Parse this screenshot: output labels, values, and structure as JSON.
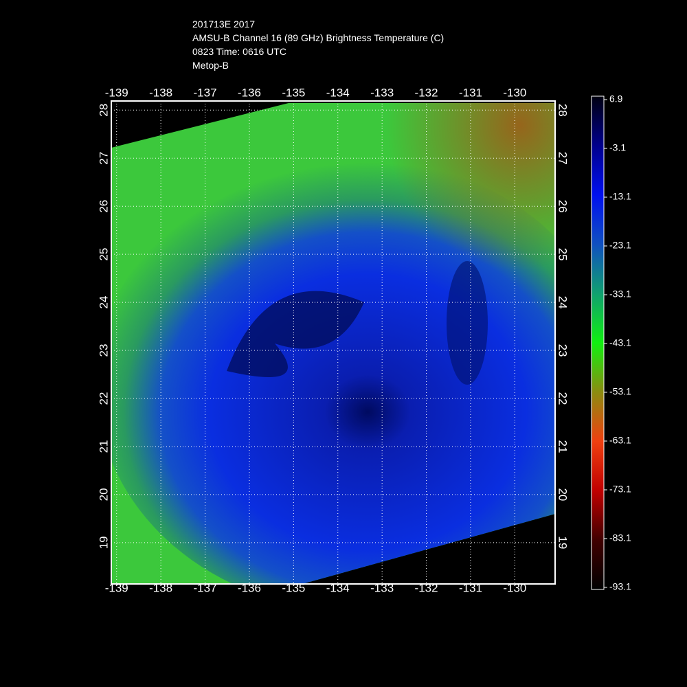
{
  "header": {
    "lines": [
      "201713E 2017",
      "AMSU-B Channel 16 (89 GHz) Brightness Temperature (C)",
      "0823 Time: 0616 UTC",
      "Metop-B"
    ]
  },
  "map": {
    "xlim": [
      -139.12,
      -129.09
    ],
    "ylim": [
      18.14,
      28.19
    ],
    "xticks": [
      -139,
      -138,
      -137,
      -136,
      -135,
      -134,
      -133,
      -132,
      -131,
      -130
    ],
    "yticks": [
      19,
      20,
      21,
      22,
      23,
      24,
      25,
      26,
      27,
      28
    ],
    "grid": true
  },
  "colorbar": {
    "lim": [
      -93.1,
      6.9
    ],
    "ticks": [
      6.9,
      -3.1,
      -13.1,
      -23.1,
      -33.1,
      -43.1,
      -53.1,
      -63.1,
      -73.1,
      -83.1,
      -93.1
    ]
  }
}
